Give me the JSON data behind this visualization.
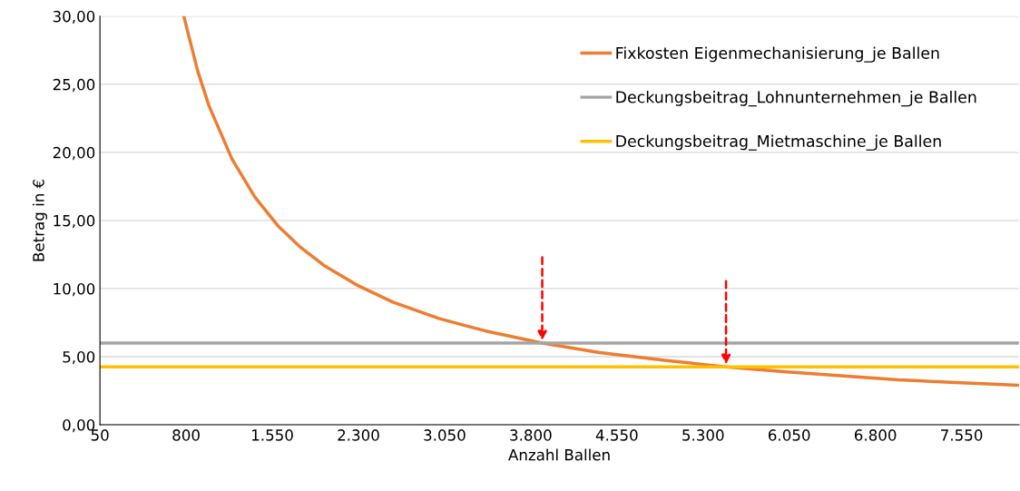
{
  "chart_data": {
    "type": "line",
    "xlabel": "Anzahl Ballen",
    "ylabel": "Betrag in €",
    "xlim": [
      50,
      8050
    ],
    "ylim": [
      0,
      30
    ],
    "xticks": [
      {
        "value": 50,
        "label": "50"
      },
      {
        "value": 800,
        "label": "800"
      },
      {
        "value": 1550,
        "label": "1.550"
      },
      {
        "value": 2300,
        "label": "2.300"
      },
      {
        "value": 3050,
        "label": "3.050"
      },
      {
        "value": 3800,
        "label": "3.800"
      },
      {
        "value": 4550,
        "label": "4.550"
      },
      {
        "value": 5300,
        "label": "5.300"
      },
      {
        "value": 6050,
        "label": "6.050"
      },
      {
        "value": 6800,
        "label": "6.800"
      },
      {
        "value": 7550,
        "label": "7.550"
      }
    ],
    "yticks": [
      {
        "value": 0,
        "label": "0,00"
      },
      {
        "value": 5,
        "label": "5,00"
      },
      {
        "value": 10,
        "label": "10,00"
      },
      {
        "value": 15,
        "label": "15,00"
      },
      {
        "value": 20,
        "label": "20,00"
      },
      {
        "value": 25,
        "label": "25,00"
      },
      {
        "value": 30,
        "label": "30,00"
      }
    ],
    "grid": "y",
    "legend": "top right",
    "series": [
      {
        "name": "Fixkosten Eigenmechanisierung_je Ballen",
        "color": "#ed7d31",
        "x": [
          780,
          900,
          1000,
          1200,
          1400,
          1600,
          1800,
          2000,
          2300,
          2600,
          3000,
          3400,
          3900,
          4400,
          5000,
          5500,
          6000,
          6500,
          7000,
          7500,
          8050
        ],
        "values": [
          30.0,
          26.0,
          23.4,
          19.5,
          16.7,
          14.6,
          13.0,
          11.7,
          10.2,
          9.0,
          7.8,
          6.9,
          6.0,
          5.3,
          4.7,
          4.25,
          3.9,
          3.6,
          3.3,
          3.1,
          2.9
        ]
      },
      {
        "name": "Deckungsbeitrag_Lohnunternehmen_je Ballen",
        "color": "#a5a5a5",
        "x": [
          50,
          8050
        ],
        "values": [
          6.0,
          6.0
        ]
      },
      {
        "name": "Deckungsbeitrag_Mietmaschine_je Ballen",
        "color": "#ffc000",
        "x": [
          50,
          8050
        ],
        "values": [
          4.25,
          4.25
        ]
      }
    ]
  }
}
